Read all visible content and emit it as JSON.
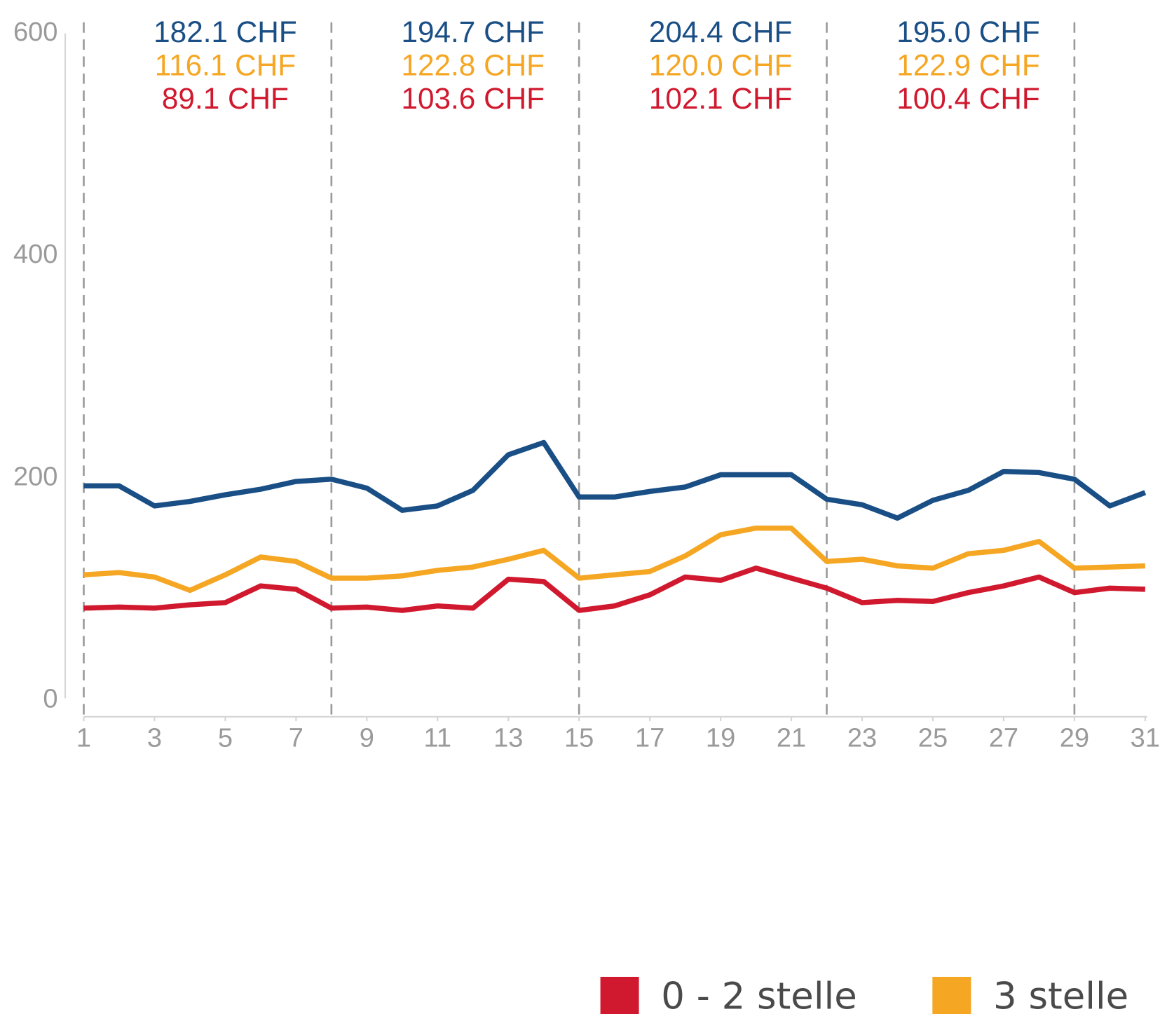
{
  "chart_data": {
    "type": "line",
    "x": [
      1,
      2,
      3,
      4,
      5,
      6,
      7,
      8,
      9,
      10,
      11,
      12,
      13,
      14,
      15,
      16,
      17,
      18,
      19,
      20,
      21,
      22,
      23,
      24,
      25,
      26,
      27,
      28,
      29,
      30,
      31
    ],
    "xlim": [
      1,
      31
    ],
    "xticks": [
      1,
      3,
      5,
      7,
      9,
      11,
      13,
      15,
      17,
      19,
      21,
      23,
      25,
      27,
      29,
      31
    ],
    "ylim": [
      0,
      600
    ],
    "yticks": [
      0,
      200,
      400,
      600
    ],
    "vlines": [
      1,
      8,
      15,
      22,
      29
    ],
    "series": [
      {
        "color": "#1a4f86",
        "values": [
          193,
          193,
          175,
          179,
          185,
          190,
          197,
          199,
          191,
          171,
          175,
          189,
          221,
          232,
          183,
          183,
          188,
          192,
          203,
          203,
          203,
          181,
          176,
          164,
          180,
          189,
          206,
          205,
          199,
          175,
          187
        ]
      },
      {
        "name": "3 stelle",
        "color": "#f5a623",
        "values": [
          113,
          115,
          111,
          99,
          113,
          129,
          125,
          110,
          110,
          112,
          117,
          120,
          127,
          135,
          110,
          113,
          116,
          130,
          149,
          155,
          155,
          125,
          127,
          121,
          119,
          132,
          135,
          143,
          119,
          120,
          121
        ]
      },
      {
        "name": "0 - 2 stelle",
        "color": "#d0192e",
        "values": [
          83,
          84,
          83,
          86,
          88,
          103,
          100,
          83,
          84,
          81,
          85,
          83,
          109,
          107,
          81,
          85,
          95,
          111,
          108,
          119,
          110,
          101,
          88,
          90,
          89,
          97,
          103,
          111,
          97,
          101,
          100
        ]
      }
    ],
    "annotations": [
      [
        "182.1 CHF",
        "116.1 CHF",
        "89.1 CHF"
      ],
      [
        "194.7 CHF",
        "122.8 CHF",
        "103.6 CHF"
      ],
      [
        "204.4 CHF",
        "120.0 CHF",
        "102.1 CHF"
      ],
      [
        "195.0 CHF",
        "122.9 CHF",
        "100.4 CHF"
      ]
    ]
  }
}
